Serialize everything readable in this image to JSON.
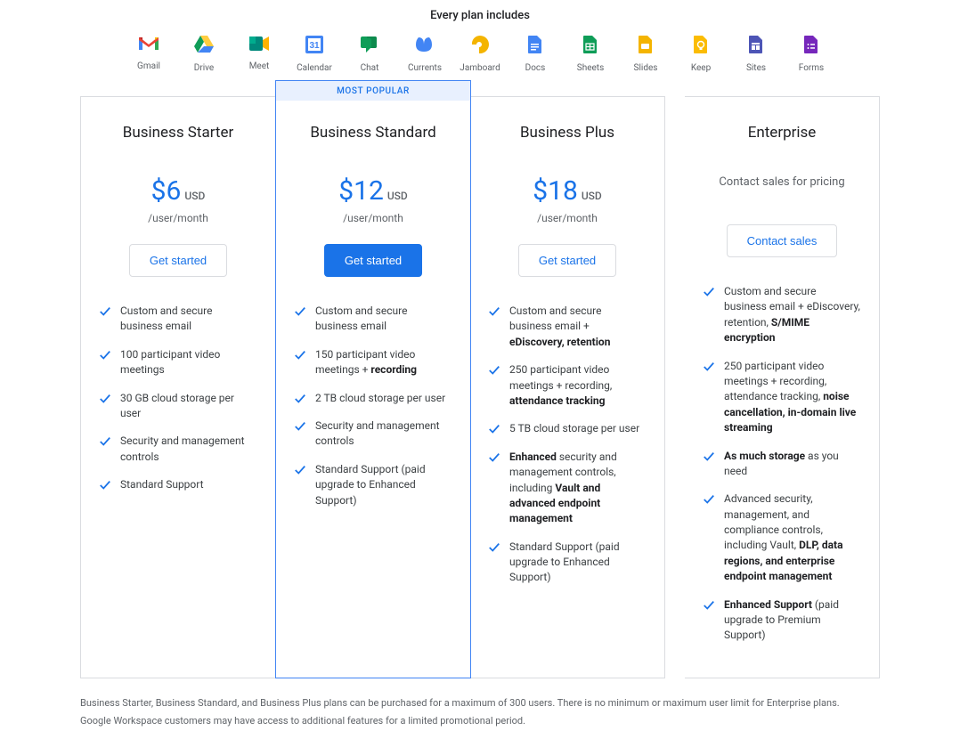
{
  "colors": {
    "brand_blue": "#1a73e8",
    "border": "#dadce0",
    "badge_bg": "#e8f0fe",
    "text_body": "#3c4043",
    "text_muted": "#5f6368",
    "text_heading": "#202124"
  },
  "header": {
    "label": "Every plan includes"
  },
  "apps": [
    {
      "name": "Gmail",
      "colors": [
        "#ea4335",
        "#fbbc04",
        "#34a853",
        "#4285f4",
        "#c5221f"
      ]
    },
    {
      "name": "Drive",
      "colors": [
        "#0f9d58",
        "#ffcd40",
        "#4285f4"
      ]
    },
    {
      "name": "Meet",
      "colors": [
        "#00897b",
        "#ffb300"
      ]
    },
    {
      "name": "Calendar",
      "colors": [
        "#4285f4",
        "#ffffff"
      ]
    },
    {
      "name": "Chat",
      "colors": [
        "#0f9d58"
      ]
    },
    {
      "name": "Currents",
      "colors": [
        "#4285f4"
      ]
    },
    {
      "name": "Jamboard",
      "colors": [
        "#f4b400"
      ]
    },
    {
      "name": "Docs",
      "colors": [
        "#4285f4"
      ]
    },
    {
      "name": "Sheets",
      "colors": [
        "#0f9d58"
      ]
    },
    {
      "name": "Slides",
      "colors": [
        "#f4b400"
      ]
    },
    {
      "name": "Keep",
      "colors": [
        "#fbbc04"
      ]
    },
    {
      "name": "Sites",
      "colors": [
        "#4d55b6"
      ]
    },
    {
      "name": "Forms",
      "colors": [
        "#7627bb"
      ]
    }
  ],
  "popular_label": "MOST POPULAR",
  "plans": [
    {
      "id": "starter",
      "title": "Business Starter",
      "price": "$6",
      "currency": "USD",
      "per": "/user/month",
      "cta": "Get started",
      "cta_primary": false,
      "features": [
        {
          "text": "Custom and secure business email"
        },
        {
          "text": "100 participant video meetings"
        },
        {
          "text": "30 GB cloud storage per user"
        },
        {
          "text": "Security and management controls"
        },
        {
          "text": "Standard Support"
        }
      ]
    },
    {
      "id": "standard",
      "title": "Business Standard",
      "popular": true,
      "price": "$12",
      "currency": "USD",
      "per": "/user/month",
      "cta": "Get started",
      "cta_primary": true,
      "features": [
        {
          "text": "Custom and secure business email"
        },
        {
          "html": "150 participant video meetings + <b>recording</b>"
        },
        {
          "text": "2 TB cloud storage per user"
        },
        {
          "text": "Security and management controls"
        },
        {
          "text": "Standard Support (paid upgrade to Enhanced Support)"
        }
      ]
    },
    {
      "id": "plus",
      "title": "Business Plus",
      "price": "$18",
      "currency": "USD",
      "per": "/user/month",
      "cta": "Get started",
      "cta_primary": false,
      "features": [
        {
          "html": "Custom and secure business email + <b>eDiscovery, retention</b>"
        },
        {
          "html": "250 participant video meetings + recording, <b>attendance tracking</b>"
        },
        {
          "text": "5 TB cloud storage per user"
        },
        {
          "html": "<b>Enhanced</b> security and management controls, including <b>Vault and advanced endpoint management</b>"
        },
        {
          "text": "Standard Support (paid upgrade to Enhanced Support)"
        }
      ]
    },
    {
      "id": "enterprise",
      "title": "Enterprise",
      "pricing_text": "Contact sales for pricing",
      "cta": "Contact sales",
      "cta_primary": false,
      "features": [
        {
          "html": "Custom and secure business email + eDiscovery, retention, <b>S/MIME encryption</b>"
        },
        {
          "html": "250 participant video meetings + recording, attendance tracking, <b>noise cancellation, in-domain live streaming</b>"
        },
        {
          "html": "<b>As much storage</b> as you need"
        },
        {
          "html": "Advanced security, management, and compliance controls, including Vault, <b>DLP, data regions, and enterprise endpoint management</b>"
        },
        {
          "html": "<b>Enhanced Support</b> (paid upgrade to Premium Support)"
        }
      ]
    }
  ],
  "footnotes": [
    "Business Starter, Business Standard, and Business Plus plans can be purchased for a maximum of 300 users. There is no minimum or maximum user limit for Enterprise plans.",
    "Google Workspace customers may have access to additional features for a limited promotional period."
  ]
}
